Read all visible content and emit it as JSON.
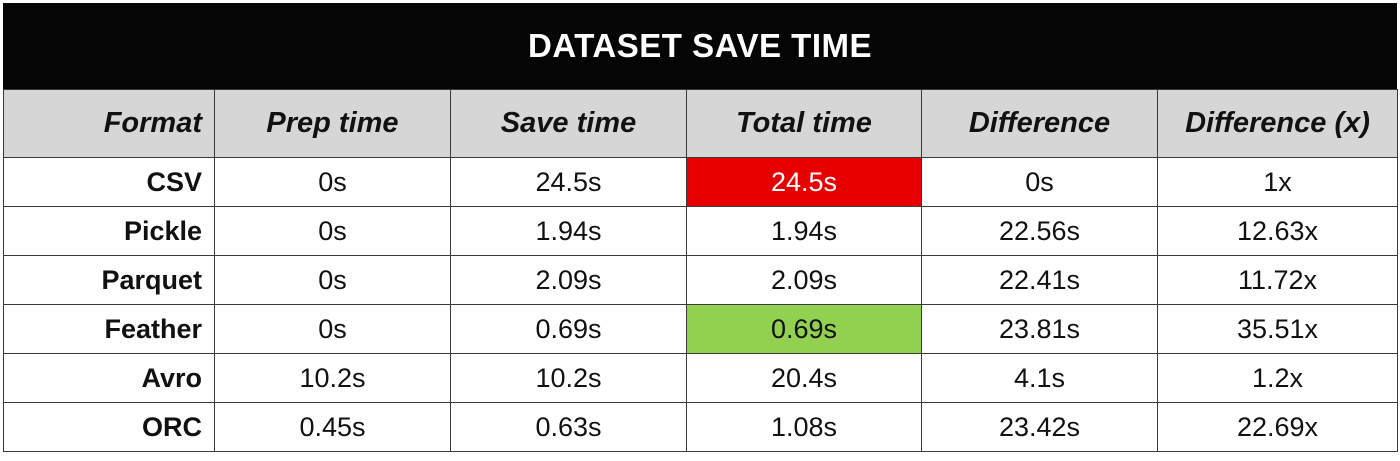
{
  "chart_data": {
    "type": "table",
    "title": "DATASET SAVE TIME",
    "columns": [
      "Format",
      "Prep time",
      "Save time",
      "Total time",
      "Difference",
      "Difference (x)"
    ],
    "rows": [
      [
        "CSV",
        "0s",
        "24.5s",
        "24.5s",
        "0s",
        "1x"
      ],
      [
        "Pickle",
        "0s",
        "1.94s",
        "1.94s",
        "22.56s",
        "12.63x"
      ],
      [
        "Parquet",
        "0s",
        "2.09s",
        "2.09s",
        "22.41s",
        "11.72x"
      ],
      [
        "Feather",
        "0s",
        "0.69s",
        "0.69s",
        "23.81s",
        "35.51x"
      ],
      [
        "Avro",
        "10.2s",
        "10.2s",
        "20.4s",
        "4.1s",
        "1.2x"
      ],
      [
        "ORC",
        "0.45s",
        "0.63s",
        "1.08s",
        "23.42s",
        "22.69x"
      ]
    ],
    "highlights": {
      "worst_total_time_color": "#e60000",
      "best_total_time_color": "#92d050"
    }
  }
}
